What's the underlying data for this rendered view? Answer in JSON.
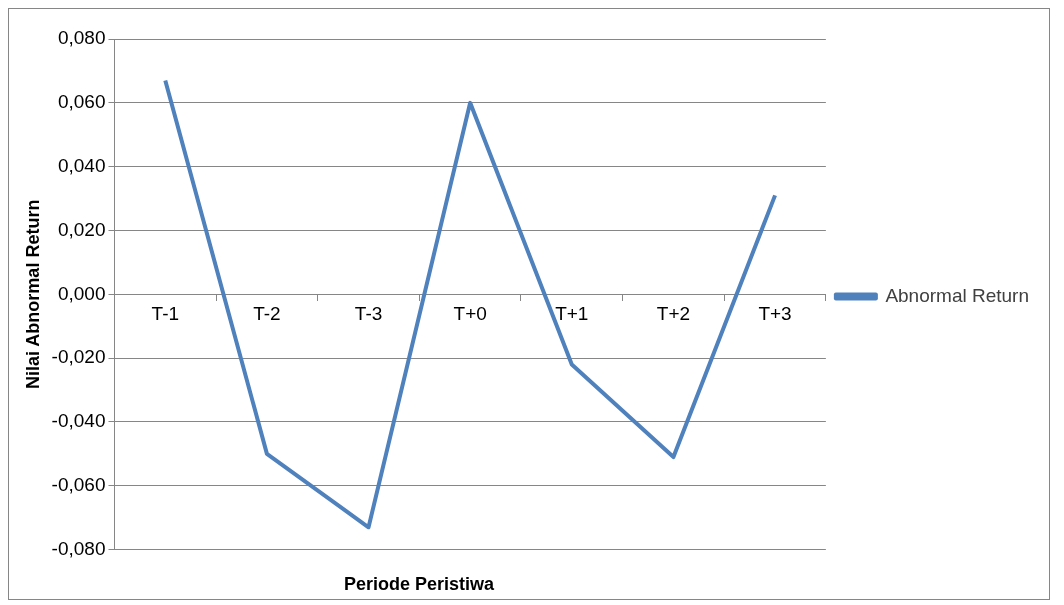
{
  "chart_data": {
    "type": "line",
    "xlabel": "Periode Peristiwa",
    "ylabel": "Nilai Abnormal Return",
    "categories": [
      "T-1",
      "T-2",
      "T-3",
      "T+0",
      "T+1",
      "T+2",
      "T+3"
    ],
    "series": [
      {
        "name": "Abnormal Return",
        "color": "#4f81bd",
        "values": [
          0.067,
          -0.05,
          -0.073,
          0.06,
          -0.022,
          -0.051,
          0.031
        ]
      }
    ],
    "ylim": [
      -0.08,
      0.08
    ],
    "yticks": [
      {
        "value": -0.08,
        "label": "-0,080"
      },
      {
        "value": -0.06,
        "label": "-0,060"
      },
      {
        "value": -0.04,
        "label": "-0,040"
      },
      {
        "value": -0.02,
        "label": "-0,020"
      },
      {
        "value": 0,
        "label": "0,000"
      },
      {
        "value": 0.02,
        "label": "0,020"
      },
      {
        "value": 0.04,
        "label": "0,040"
      },
      {
        "value": 0.06,
        "label": "0,060"
      },
      {
        "value": 0.08,
        "label": "0,080"
      }
    ],
    "grid": "y",
    "legend": "right",
    "marker": "none",
    "line_style": "solid"
  }
}
